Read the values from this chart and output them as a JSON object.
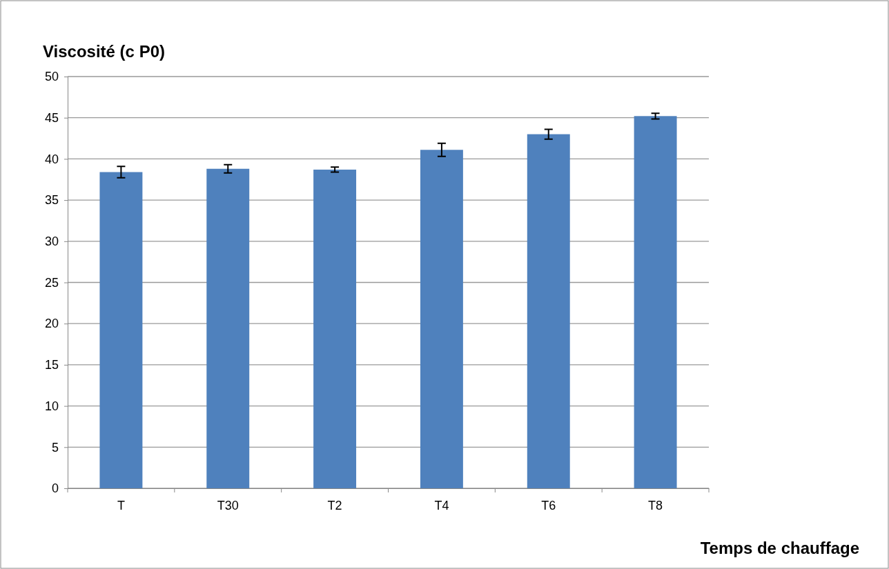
{
  "chart_data": {
    "type": "bar",
    "ylabel": "Viscosité (c P0)",
    "xlabel": "Temps de chauffage",
    "categories": [
      "T",
      "T30",
      "T2",
      "T4",
      "T6",
      "T8"
    ],
    "values": [
      38.4,
      38.8,
      38.7,
      41.1,
      43.0,
      45.2
    ],
    "errors": [
      0.7,
      0.5,
      0.3,
      0.8,
      0.6,
      0.35
    ],
    "color": "#4f81bd",
    "ylim": [
      0,
      50
    ],
    "yticks": [
      0,
      5,
      10,
      15,
      20,
      25,
      30,
      35,
      40,
      45,
      50
    ],
    "grid": "y"
  }
}
